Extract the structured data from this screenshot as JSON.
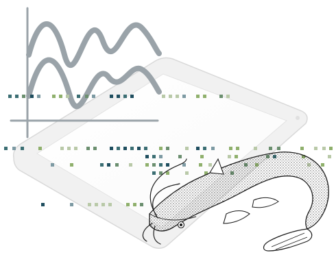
{
  "scene": {
    "background": "#ffffff",
    "tablet": {
      "frame_color": "#f1f1f1",
      "screen_color": "#ffffff"
    },
    "waveforms": {
      "color": "#9aa3a9",
      "count": 2
    },
    "pixel_rows": {
      "palette": [
        "#1f4e5f",
        "#3b6e73",
        "#6b8f6f",
        "#8fb06c",
        "#b9c9a8",
        "#7d9aa3"
      ]
    },
    "catfish": {
      "icon": "catfish-icon",
      "ink_color": "#1b1b1b"
    }
  }
}
